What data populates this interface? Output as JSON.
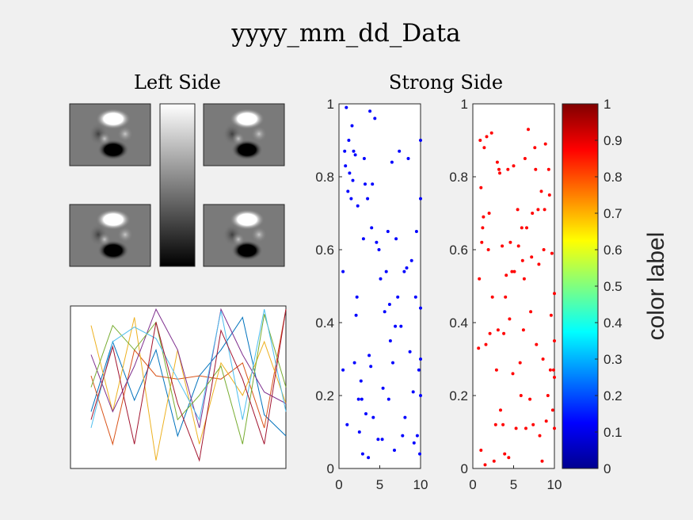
{
  "figure": {
    "suptitle": "yyyy_mm_dd_Data",
    "left_title": "Left Side",
    "right_title": "Strong Side",
    "colorbar_label": "color label",
    "colors": {
      "background": "#f0f0f0",
      "axes_bg": "#ffffff",
      "blue": "#0000ff",
      "red": "#ff0000"
    }
  },
  "chart_data": [
    {
      "type": "image",
      "name": "images",
      "colormap": "gray",
      "count": 4,
      "description_values": {
        "bright_blob": 1,
        "dark_blob": 0
      }
    },
    {
      "type": "colorbar",
      "name": "gray-colorbar",
      "colormap": "gray",
      "orientation": "vertical"
    },
    {
      "type": "line",
      "name": "line-panel",
      "ticks": false,
      "x": [
        1,
        2,
        3,
        4,
        5,
        6,
        7,
        8,
        9,
        10
      ],
      "series": [
        {
          "color": "#0072BD",
          "values": [
            0.35,
            0.78,
            0.42,
            0.73,
            0.2,
            0.57,
            0.73,
            0.93,
            0.33,
            0.2
          ]
        },
        {
          "color": "#D95319",
          "values": [
            0.57,
            0.15,
            0.73,
            0.57,
            0.55,
            0.57,
            0.55,
            0.65,
            0.25,
            0.98
          ]
        },
        {
          "color": "#EDB120",
          "values": [
            0.88,
            0.35,
            0.93,
            0.05,
            0.73,
            0.15,
            0.65,
            0.45,
            0.78,
            0.4
          ]
        },
        {
          "color": "#7E2F8E",
          "values": [
            0.7,
            0.35,
            0.63,
            0.98,
            0.73,
            0.25,
            0.98,
            0.7,
            0.47,
            0.4
          ]
        },
        {
          "color": "#77AC30",
          "values": [
            0.5,
            0.88,
            0.73,
            0.9,
            0.3,
            0.45,
            0.63,
            0.15,
            0.95,
            0.5
          ]
        },
        {
          "color": "#4DBEEE",
          "values": [
            0.25,
            0.78,
            0.87,
            0.8,
            0.55,
            0.3,
            0.97,
            0.3,
            0.98,
            0.35
          ]
        },
        {
          "color": "#A2142F",
          "values": [
            0.3,
            0.75,
            0.15,
            0.9,
            0.4,
            0.05,
            0.85,
            0.55,
            0.15,
            0.98
          ]
        }
      ]
    },
    {
      "type": "scatter",
      "name": "blue-scatter",
      "xlim": [
        0,
        10
      ],
      "ylim": [
        0,
        1
      ],
      "xticks": [
        "0",
        "5",
        "10"
      ],
      "yticks": [
        "0",
        "0.2",
        "0.4",
        "0.6",
        "0.8",
        "1"
      ],
      "color": "#0000ff",
      "points": [
        [
          0.5,
          0.27
        ],
        [
          0.5,
          0.54
        ],
        [
          0.7,
          0.87
        ],
        [
          0.8,
          0.83
        ],
        [
          0.9,
          0.99
        ],
        [
          1.0,
          0.12
        ],
        [
          1.1,
          0.76
        ],
        [
          1.2,
          0.9
        ],
        [
          1.3,
          0.81
        ],
        [
          1.5,
          0.74
        ],
        [
          1.6,
          0.94
        ],
        [
          1.7,
          0.79
        ],
        [
          1.8,
          0.87
        ],
        [
          1.9,
          0.29
        ],
        [
          2.0,
          0.86
        ],
        [
          2.1,
          0.42
        ],
        [
          2.2,
          0.47
        ],
        [
          2.3,
          0.72
        ],
        [
          2.4,
          0.19
        ],
        [
          2.5,
          0.1
        ],
        [
          2.7,
          0.24
        ],
        [
          2.8,
          0.19
        ],
        [
          2.9,
          0.04
        ],
        [
          3.0,
          0.63
        ],
        [
          3.1,
          0.85
        ],
        [
          3.2,
          0.78
        ],
        [
          3.3,
          0.15
        ],
        [
          3.5,
          0.74
        ],
        [
          3.6,
          0.03
        ],
        [
          3.7,
          0.31
        ],
        [
          3.8,
          0.98
        ],
        [
          3.9,
          0.28
        ],
        [
          4.0,
          0.66
        ],
        [
          4.1,
          0.78
        ],
        [
          4.2,
          0.14
        ],
        [
          4.4,
          0.96
        ],
        [
          4.6,
          0.62
        ],
        [
          4.8,
          0.08
        ],
        [
          4.9,
          0.6
        ],
        [
          5.1,
          0.52
        ],
        [
          5.3,
          0.08
        ],
        [
          5.4,
          0.22
        ],
        [
          5.6,
          0.43
        ],
        [
          5.8,
          0.54
        ],
        [
          6.0,
          0.65
        ],
        [
          6.1,
          0.19
        ],
        [
          6.2,
          0.45
        ],
        [
          6.3,
          0.35
        ],
        [
          6.5,
          0.84
        ],
        [
          6.6,
          0.29
        ],
        [
          6.8,
          0.05
        ],
        [
          6.9,
          0.39
        ],
        [
          7.0,
          0.63
        ],
        [
          7.2,
          0.47
        ],
        [
          7.4,
          0.87
        ],
        [
          7.6,
          0.39
        ],
        [
          7.8,
          0.09
        ],
        [
          8.0,
          0.54
        ],
        [
          8.1,
          0.14
        ],
        [
          8.3,
          0.55
        ],
        [
          8.5,
          0.85
        ],
        [
          8.7,
          0.32
        ],
        [
          8.9,
          0.57
        ],
        [
          9.1,
          0.21
        ],
        [
          9.2,
          0.07
        ],
        [
          9.4,
          0.47
        ],
        [
          9.5,
          0.65
        ],
        [
          9.6,
          0.09
        ],
        [
          9.8,
          0.27
        ],
        [
          9.9,
          0.04
        ],
        [
          10.0,
          0.74
        ],
        [
          10.0,
          0.3
        ],
        [
          10.0,
          0.2
        ],
        [
          10.0,
          0.9
        ],
        [
          10.0,
          0.44
        ]
      ]
    },
    {
      "type": "scatter",
      "name": "red-scatter",
      "xlim": [
        0,
        10
      ],
      "ylim": [
        0,
        1
      ],
      "xticks": [
        "0",
        "5",
        "10"
      ],
      "yticks": [
        "0",
        "0.2",
        "0.4",
        "0.6",
        "0.8",
        "1"
      ],
      "color": "#ff0000",
      "points": [
        [
          0.7,
          0.33
        ],
        [
          0.8,
          0.52
        ],
        [
          0.9,
          0.9
        ],
        [
          1.0,
          0.05
        ],
        [
          1.0,
          0.77
        ],
        [
          1.1,
          0.62
        ],
        [
          1.2,
          0.66
        ],
        [
          1.3,
          0.69
        ],
        [
          1.4,
          0.88
        ],
        [
          1.5,
          0.01
        ],
        [
          1.6,
          0.34
        ],
        [
          1.7,
          0.91
        ],
        [
          1.9,
          0.6
        ],
        [
          2.0,
          0.7
        ],
        [
          2.1,
          0.37
        ],
        [
          2.3,
          0.92
        ],
        [
          2.4,
          0.47
        ],
        [
          2.6,
          0.02
        ],
        [
          2.8,
          0.12
        ],
        [
          2.9,
          0.27
        ],
        [
          3.0,
          0.84
        ],
        [
          3.1,
          0.38
        ],
        [
          3.2,
          0.82
        ],
        [
          3.3,
          0.81
        ],
        [
          3.4,
          0.16
        ],
        [
          3.6,
          0.61
        ],
        [
          3.7,
          0.12
        ],
        [
          3.8,
          0.37
        ],
        [
          3.9,
          0.04
        ],
        [
          4.0,
          0.47
        ],
        [
          4.1,
          0.53
        ],
        [
          4.3,
          0.82
        ],
        [
          4.4,
          0.03
        ],
        [
          4.5,
          0.41
        ],
        [
          4.6,
          0.62
        ],
        [
          4.8,
          0.54
        ],
        [
          4.9,
          0.26
        ],
        [
          5.0,
          0.83
        ],
        [
          5.1,
          0.54
        ],
        [
          5.3,
          0.11
        ],
        [
          5.5,
          0.71
        ],
        [
          5.6,
          0.61
        ],
        [
          5.8,
          0.29
        ],
        [
          5.9,
          0.2
        ],
        [
          6.0,
          0.66
        ],
        [
          6.1,
          0.57
        ],
        [
          6.2,
          0.38
        ],
        [
          6.3,
          0.52
        ],
        [
          6.4,
          0.85
        ],
        [
          6.5,
          0.11
        ],
        [
          6.6,
          0.66
        ],
        [
          6.8,
          0.93
        ],
        [
          7.0,
          0.19
        ],
        [
          7.1,
          0.43
        ],
        [
          7.2,
          0.58
        ],
        [
          7.3,
          0.7
        ],
        [
          7.4,
          0.12
        ],
        [
          7.6,
          0.88
        ],
        [
          7.7,
          0.82
        ],
        [
          7.8,
          0.34
        ],
        [
          8.0,
          0.71
        ],
        [
          8.1,
          0.56
        ],
        [
          8.2,
          0.09
        ],
        [
          8.4,
          0.76
        ],
        [
          8.5,
          0.02
        ],
        [
          8.6,
          0.3
        ],
        [
          8.7,
          0.6
        ],
        [
          8.8,
          0.71
        ],
        [
          8.9,
          0.89
        ],
        [
          9.0,
          0.13
        ],
        [
          9.2,
          0.2
        ],
        [
          9.3,
          0.82
        ],
        [
          9.4,
          0.75
        ],
        [
          9.5,
          0.27
        ],
        [
          9.6,
          0.42
        ],
        [
          9.7,
          0.59
        ],
        [
          9.8,
          0.16
        ],
        [
          9.9,
          0.27
        ],
        [
          10.0,
          0.48
        ],
        [
          10.0,
          0.25
        ],
        [
          10.0,
          0.35
        ],
        [
          10.0,
          0.11
        ]
      ]
    },
    {
      "type": "colorbar",
      "name": "jet-colorbar",
      "colormap": "jet",
      "orientation": "vertical",
      "ylim": [
        0,
        1
      ],
      "ticks": [
        "0",
        "0.1",
        "0.2",
        "0.3",
        "0.4",
        "0.5",
        "0.6",
        "0.7",
        "0.8",
        "0.9",
        "1"
      ]
    }
  ]
}
